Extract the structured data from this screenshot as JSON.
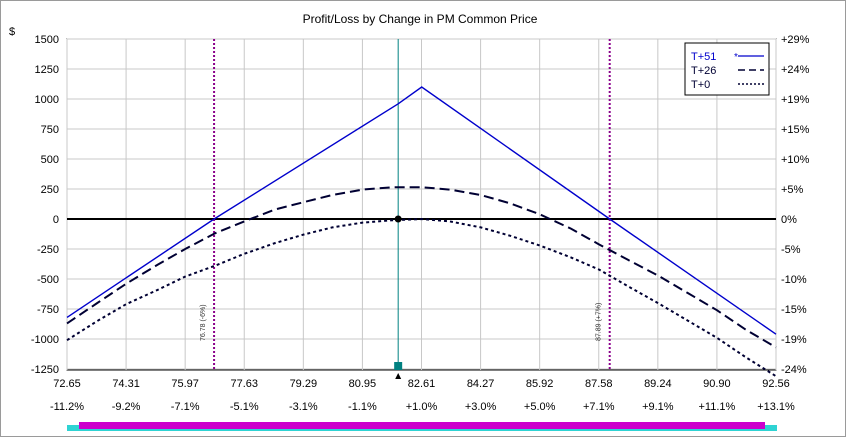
{
  "chart_data": {
    "type": "line",
    "title": "Profit/Loss by Change in PM Common Price",
    "ylabel": "$",
    "x_ticks": [
      "72.65",
      "74.31",
      "75.97",
      "77.63",
      "79.29",
      "80.95",
      "82.61",
      "84.27",
      "85.92",
      "87.58",
      "89.24",
      "90.90",
      "92.56"
    ],
    "x_pct_ticks": [
      "-11.2%",
      "-9.2%",
      "-7.1%",
      "-5.1%",
      "-3.1%",
      "-1.1%",
      "+1.0%",
      "+3.0%",
      "+5.0%",
      "+7.1%",
      "+9.1%",
      "+11.1%",
      "+13.1%"
    ],
    "y_ticks": [
      "1500",
      "1250",
      "1000",
      "750",
      "500",
      "250",
      "0",
      "-250",
      "-500",
      "-750",
      "-1000",
      "-1250"
    ],
    "y_pct_ticks": [
      "+29%",
      "+24%",
      "+19%",
      "+15%",
      "+10%",
      "+5%",
      "0%",
      "-5%",
      "-10%",
      "-15%",
      "-19%",
      "-24%"
    ],
    "xlim": [
      72.65,
      92.56
    ],
    "ylim": [
      -1250,
      1500
    ],
    "grid": true,
    "legend_position": "top-right",
    "current_price": 81.95,
    "breakevens": [
      {
        "x": 76.78,
        "label": "76.78 (-6%)"
      },
      {
        "x": 87.89,
        "label": "87.89 (+7%)"
      }
    ],
    "series": [
      {
        "name": "T+51",
        "style": "solid",
        "color": "#0000cc",
        "x": [
          72.65,
          76.78,
          81.95,
          82.61,
          87.89,
          92.56
        ],
        "y": [
          -820,
          0,
          960,
          1100,
          0,
          -960
        ]
      },
      {
        "name": "T+26",
        "style": "dashed",
        "color": "#000033",
        "x": [
          72.65,
          73.5,
          74.31,
          75.2,
          75.97,
          76.8,
          77.63,
          78.5,
          79.29,
          80.1,
          80.95,
          81.8,
          82.61,
          83.4,
          84.27,
          85.1,
          85.92,
          86.8,
          87.58,
          88.4,
          89.24,
          90.1,
          90.9,
          91.7,
          92.56
        ],
        "y": [
          -870,
          -700,
          -540,
          -380,
          -250,
          -120,
          -20,
          80,
          140,
          200,
          245,
          265,
          265,
          245,
          200,
          130,
          40,
          -80,
          -210,
          -340,
          -470,
          -620,
          -760,
          -920,
          -1070
        ]
      },
      {
        "name": "T+0",
        "style": "dotted",
        "color": "#000033",
        "x": [
          72.65,
          73.5,
          74.31,
          75.2,
          75.97,
          76.8,
          77.63,
          78.5,
          79.29,
          80.1,
          80.95,
          81.8,
          82.61,
          83.4,
          84.27,
          85.1,
          85.92,
          86.8,
          87.58,
          88.4,
          89.24,
          90.1,
          90.9,
          91.7,
          92.56
        ],
        "y": [
          -1010,
          -850,
          -710,
          -590,
          -480,
          -390,
          -290,
          -200,
          -130,
          -70,
          -30,
          -10,
          0,
          -20,
          -70,
          -140,
          -220,
          -320,
          -420,
          -560,
          -700,
          -850,
          -990,
          -1150,
          -1310
        ]
      }
    ],
    "legend": [
      {
        "name": "T+51",
        "marker": "*"
      },
      {
        "name": "T+26",
        "marker": ""
      },
      {
        "name": "T+0",
        "marker": ""
      }
    ]
  }
}
